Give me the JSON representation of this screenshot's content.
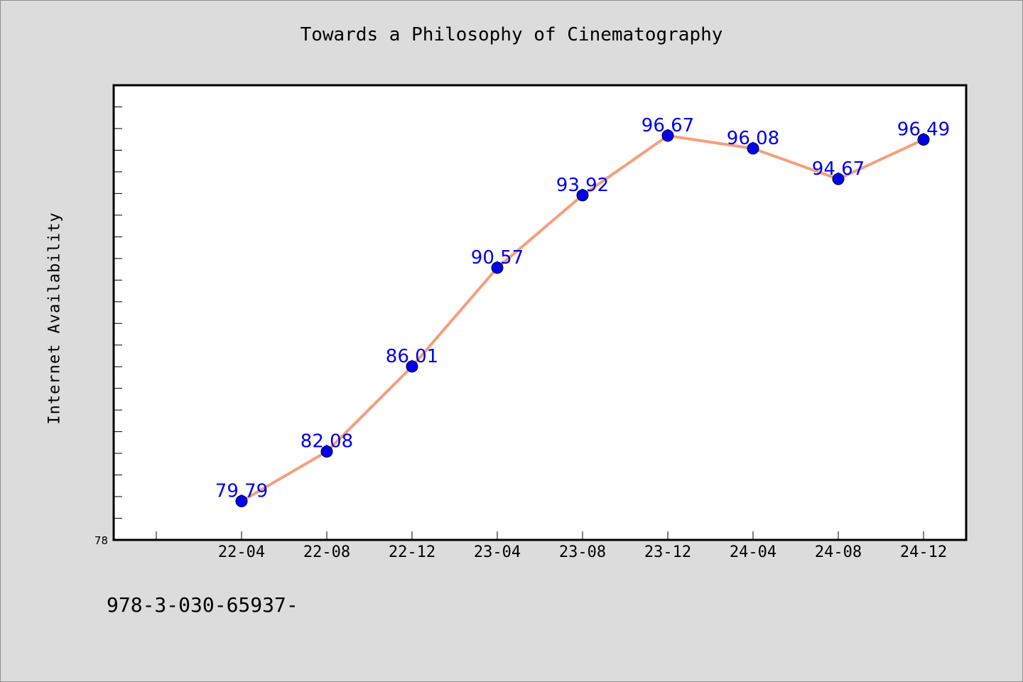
{
  "chart_data": {
    "type": "line",
    "title": "Towards a Philosophy of Cinematography",
    "ylabel": "Internet Availability",
    "xlabel": "",
    "categories": [
      "22-04",
      "22-08",
      "22-12",
      "23-04",
      "23-08",
      "23-12",
      "24-04",
      "24-08",
      "24-12"
    ],
    "series": [
      {
        "values": [
          79.79,
          82.08,
          86.01,
          90.57,
          93.92,
          96.67,
          96.08,
          94.67,
          96.49
        ],
        "labels": [
          "79.79",
          "82.08",
          "86.01",
          "90.57",
          "93.92",
          "96.67",
          "96.08",
          "94.67",
          "96.49"
        ]
      }
    ],
    "ylim": [
      78,
      99
    ],
    "y_tick_label": "78",
    "line_color": "#f4a07c",
    "marker_color": "#0000ee",
    "label_color": "#0000ee",
    "grid": false
  },
  "footer_text": "978-3-030-65937-"
}
